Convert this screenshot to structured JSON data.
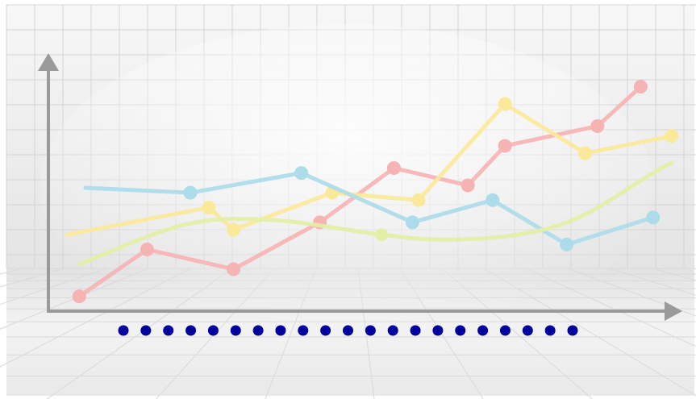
{
  "chart_data": {
    "type": "line",
    "title": "",
    "xlabel": "",
    "ylabel": "",
    "grid": true,
    "legend": "none",
    "axis_color": "#9a9a9a",
    "background": {
      "wall_top": "#f6f6f6",
      "wall_bottom": "#e6e6e6",
      "floor": "#ededed",
      "grid_line": "#d4d4d4"
    },
    "xlim": [
      0,
      100
    ],
    "ylim": [
      0,
      100
    ],
    "series": [
      {
        "color": "#f6b3b3",
        "smooth": false,
        "markers": true,
        "points": [
          [
            5,
            6
          ],
          [
            16,
            25
          ],
          [
            30,
            17
          ],
          [
            44,
            36
          ],
          [
            56,
            58
          ],
          [
            68,
            51
          ],
          [
            74,
            67
          ],
          [
            89,
            75
          ],
          [
            96,
            91
          ]
        ]
      },
      {
        "color": "#fbe99a",
        "smooth": false,
        "markers": true,
        "points": [
          [
            3,
            31
          ],
          [
            26,
            42
          ],
          [
            30,
            33
          ],
          [
            46,
            48
          ],
          [
            60,
            45
          ],
          [
            74,
            84
          ],
          [
            87,
            64
          ],
          [
            101,
            71
          ]
        ]
      },
      {
        "color": "#acdcea",
        "smooth": false,
        "markers": true,
        "points": [
          [
            6,
            50
          ],
          [
            23,
            48
          ],
          [
            41,
            56
          ],
          [
            59,
            36
          ],
          [
            72,
            45
          ],
          [
            84,
            27
          ],
          [
            98,
            38
          ]
        ]
      },
      {
        "color": "#e4efa6",
        "smooth": true,
        "markers": false,
        "points": [
          [
            5,
            19
          ],
          [
            22,
            35
          ],
          [
            36,
            37
          ],
          [
            54,
            31
          ],
          [
            64,
            29
          ],
          [
            76,
            31
          ],
          [
            86,
            38
          ],
          [
            98,
            56
          ],
          [
            101,
            60
          ]
        ]
      }
    ],
    "highlight_points": [
      [
        54,
        31
      ]
    ],
    "axis_dots": {
      "count": 21,
      "color": "#00009c"
    }
  }
}
